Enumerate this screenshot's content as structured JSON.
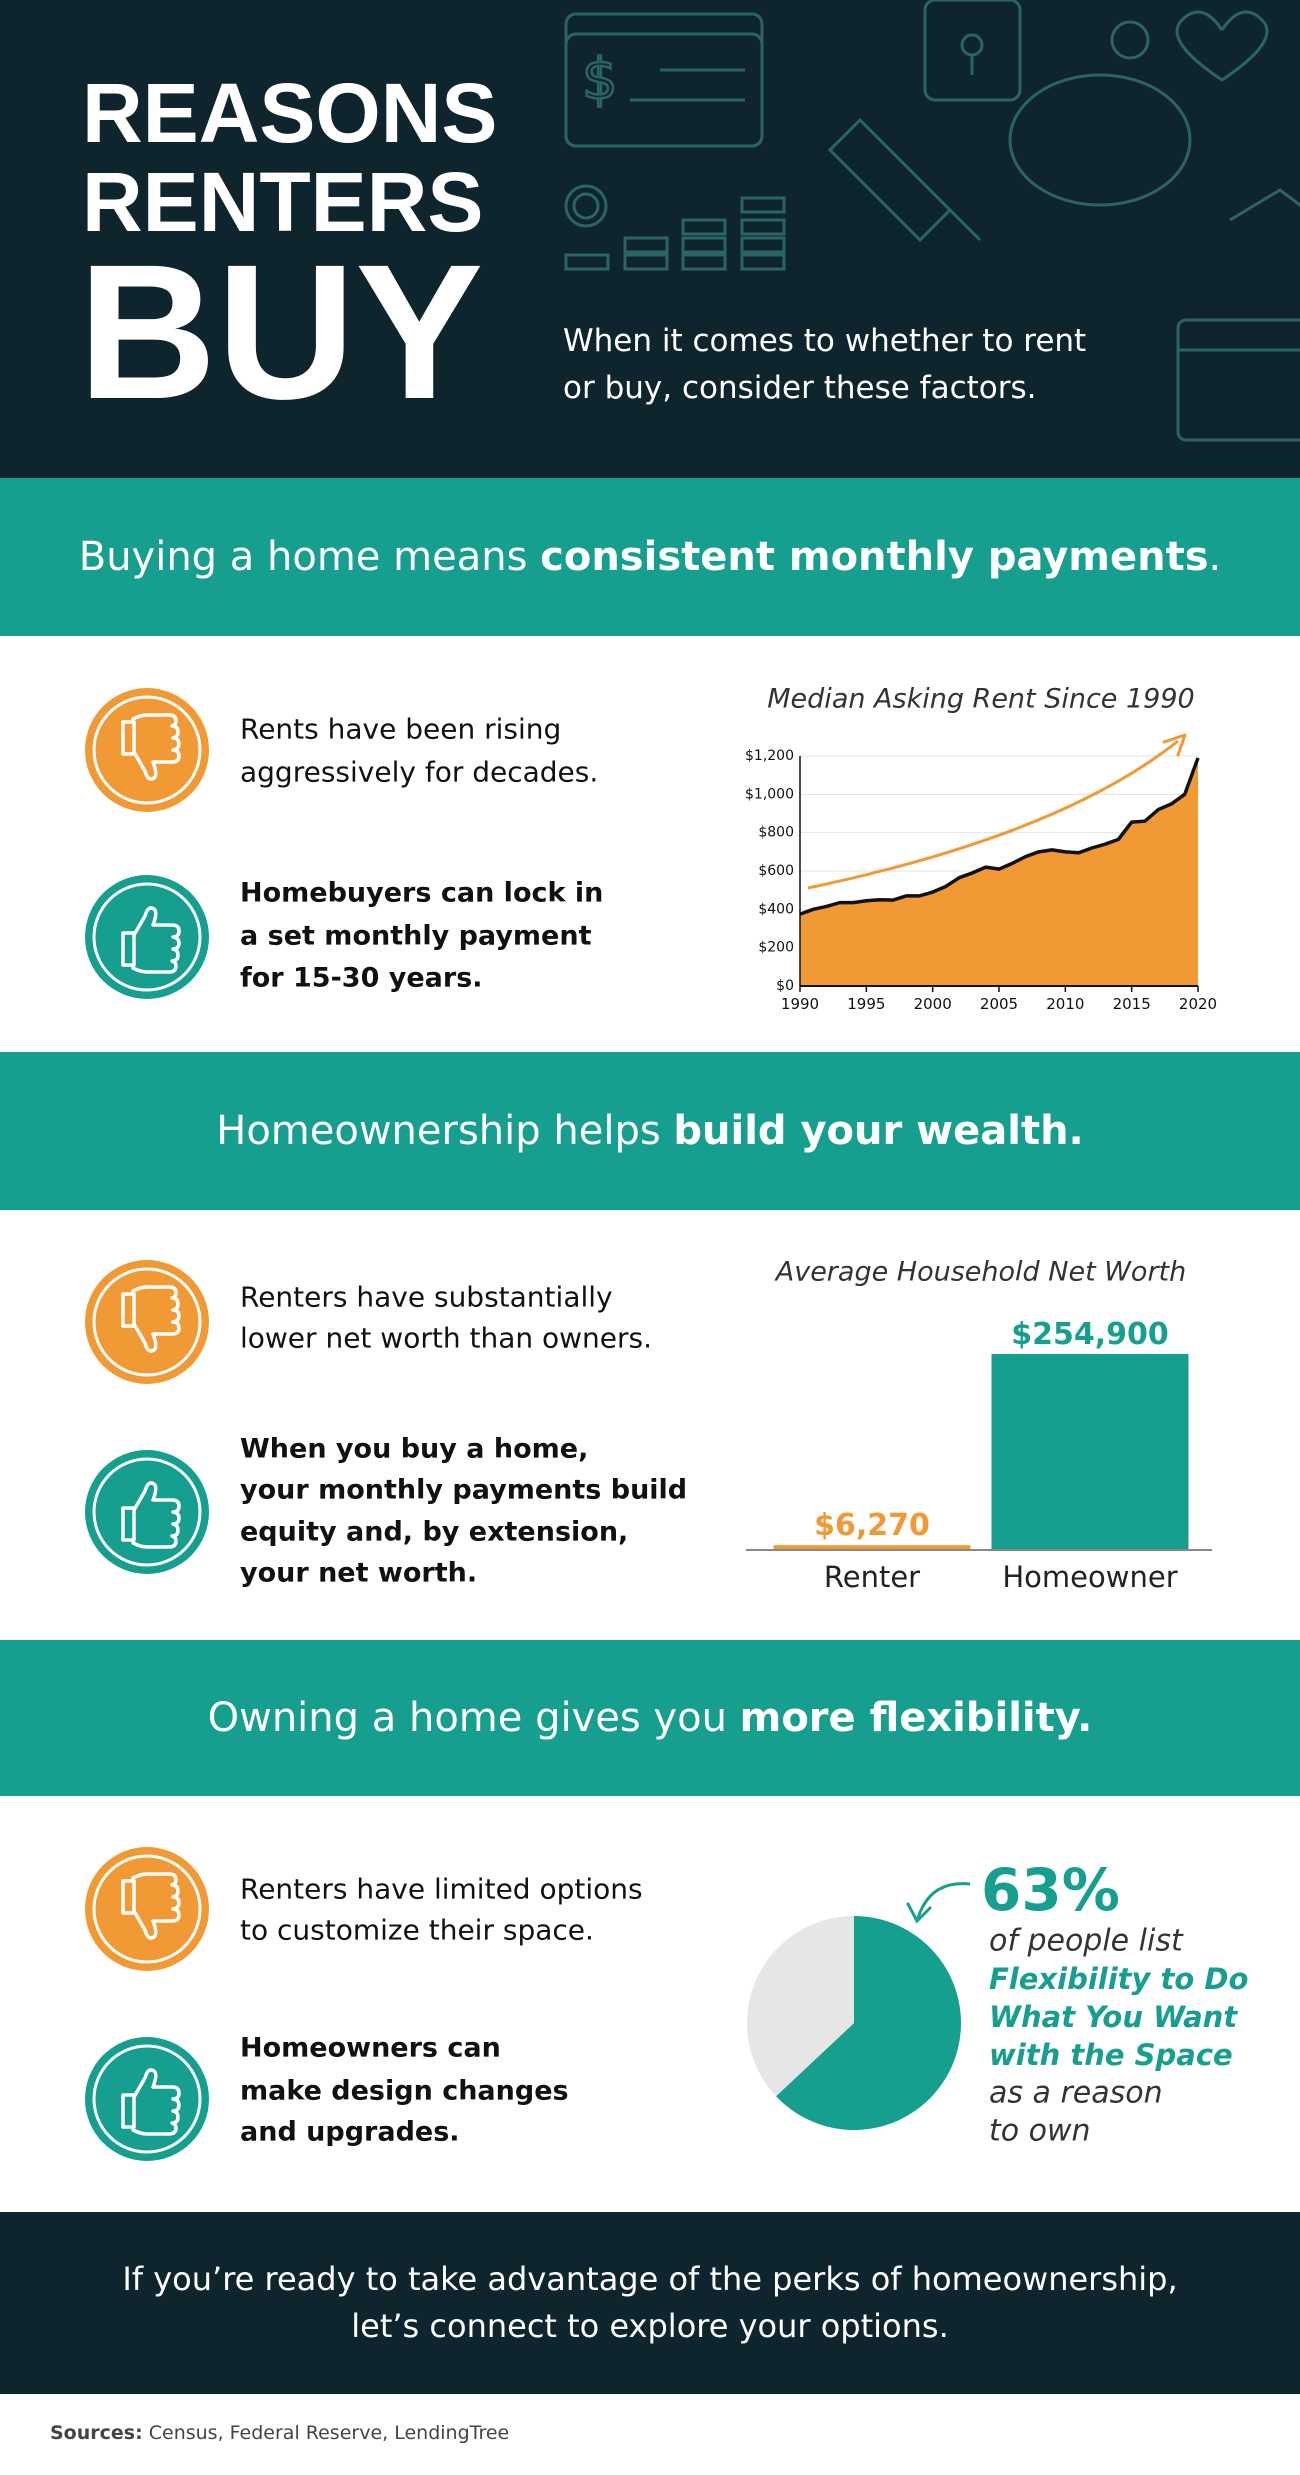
{
  "header": {
    "title_lines": [
      "REASONS",
      "RENTERS",
      "BUY"
    ],
    "subtitle_lines": [
      "When it comes to whether to rent",
      "or buy, consider these factors."
    ]
  },
  "sections": [
    {
      "heading": {
        "regular": "Buying a home means ",
        "bold": "consistent monthly payments",
        "end": "."
      },
      "con_lines": [
        "Rents have been rising",
        "aggressively for decades."
      ],
      "pro_lines": [
        "Homebuyers can lock in",
        "a set monthly payment",
        "for 15-30 years."
      ]
    },
    {
      "heading": {
        "regular": "Homeownership helps ",
        "bold": "build your wealth."
      },
      "con_lines": [
        "Renters have substantially",
        "lower net worth than owners."
      ],
      "pro_lines": [
        "When you buy a home,",
        "your monthly payments build",
        "equity and, by extension,",
        "your net worth."
      ]
    },
    {
      "heading": {
        "regular": "Owning a home gives you ",
        "bold": "more flexibility."
      },
      "con_lines": [
        "Renters have limited options",
        "to customize their space."
      ],
      "pro_lines": [
        "Homeowners can",
        "make design changes",
        "and upgrades."
      ]
    }
  ],
  "chart_data": [
    {
      "type": "area",
      "title": "Median Asking Rent Since 1990",
      "color": "#f19a35",
      "line_color": "#111111",
      "x": [
        1990,
        1991,
        1992,
        1993,
        1994,
        1995,
        1996,
        1997,
        1998,
        1999,
        2000,
        2001,
        2002,
        2003,
        2004,
        2005,
        2006,
        2007,
        2008,
        2009,
        2010,
        2011,
        2012,
        2013,
        2014,
        2015,
        2016,
        2017,
        2018,
        2019,
        2020
      ],
      "values": [
        375,
        400,
        415,
        435,
        435,
        445,
        450,
        448,
        470,
        470,
        490,
        520,
        565,
        590,
        620,
        610,
        640,
        675,
        700,
        710,
        700,
        695,
        720,
        740,
        765,
        855,
        860,
        920,
        950,
        1000,
        1190
      ],
      "xlim": [
        1990,
        2020
      ],
      "ylim": [
        0,
        1200
      ],
      "xticks": [
        1990,
        1995,
        2000,
        2005,
        2010,
        2015,
        2020
      ],
      "yticks": [
        {
          "value": 0,
          "label": "$0"
        },
        {
          "value": 200,
          "label": "$200"
        },
        {
          "value": 400,
          "label": "$400"
        },
        {
          "value": 600,
          "label": "$600"
        },
        {
          "value": 800,
          "label": "$800"
        },
        {
          "value": 1000,
          "label": "$1,000"
        },
        {
          "value": 1200,
          "label": "$1,200"
        }
      ],
      "grid": true
    },
    {
      "type": "bar",
      "title": "Average Household Net Worth",
      "categories": [
        "Renter",
        "Homeowner"
      ],
      "values": [
        6270,
        254900
      ],
      "value_labels": [
        "$6,270",
        "$254,900"
      ],
      "colors": [
        "#f19a35",
        "#169e8e"
      ]
    },
    {
      "type": "pie",
      "values": [
        63,
        37
      ],
      "value_labels": [
        "63%",
        null
      ],
      "colors": [
        "#169e8e",
        "#e6e6e6"
      ],
      "annotation": {
        "lead": "of people list",
        "highlight_lines": [
          "Flexibility to Do",
          "What You Want",
          "with the Space"
        ],
        "tail_lines": [
          "as a reason",
          "to own"
        ]
      }
    }
  ],
  "cta_lines": [
    "If you’re ready to take advantage of the perks of homeownership,",
    "let’s connect to explore your options."
  ],
  "sources": {
    "label": "Sources:",
    "text": " Census, Federal Reserve, LendingTree"
  }
}
